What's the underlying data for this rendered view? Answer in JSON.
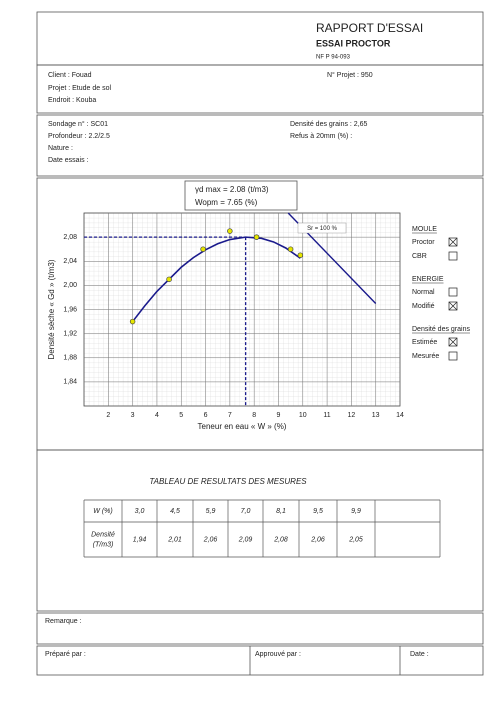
{
  "header": {
    "title": "RAPPORT D'ESSAI",
    "subtitle": "ESSAI PROCTOR",
    "norm": "NF P 94-093"
  },
  "client": {
    "client": "Client : Fouad",
    "projet_no": "N° Projet : 950",
    "projet": "Projet : Etude de sol",
    "endroit": "Endroit : Kouba"
  },
  "sondage": {
    "sondage": "Sondage n° : SC01",
    "profondeur": "Profondeur : 2.2/2.5",
    "nature": "Nature :",
    "date": "Date essais :",
    "densite": "Densité des grains : 2,65",
    "refus": "Refus à 20mm (%) :"
  },
  "chart_data": {
    "type": "scatter",
    "xlabel": "Teneur en eau « W » (%)",
    "ylabel": "Densité sèche « Gd » (t/m3)",
    "xlim": [
      1,
      14
    ],
    "ylim": [
      1.8,
      2.12
    ],
    "xticks": [
      2,
      3,
      4,
      5,
      6,
      7,
      8,
      9,
      10,
      11,
      12,
      13,
      14
    ],
    "yticks": [
      {
        "value": 1.84,
        "label": "1,84"
      },
      {
        "value": 1.88,
        "label": "1,88"
      },
      {
        "value": 1.92,
        "label": "1,92"
      },
      {
        "value": 1.96,
        "label": "1,96"
      },
      {
        "value": 2.0,
        "label": "2,00"
      },
      {
        "value": 2.04,
        "label": "2,04"
      },
      {
        "value": 2.08,
        "label": "2,08"
      }
    ],
    "grid": true,
    "points": {
      "x": [
        3.0,
        4.5,
        5.9,
        7.0,
        8.1,
        9.5,
        9.9
      ],
      "y": [
        1.94,
        2.01,
        2.06,
        2.09,
        2.08,
        2.06,
        2.05
      ],
      "color": "#e6e600"
    },
    "curve": {
      "x": [
        3,
        3.5,
        4,
        4.5,
        5,
        5.5,
        6,
        6.5,
        7,
        7.65,
        8.3,
        8.8,
        9.3,
        9.9
      ],
      "y": [
        1.94,
        1.966,
        1.99,
        2.01,
        2.03,
        2.046,
        2.059,
        2.069,
        2.076,
        2.08,
        2.078,
        2.072,
        2.062,
        2.045
      ],
      "color": "#1a1a8c"
    },
    "saturation": {
      "label": "Sr = 100 %",
      "x": [
        9.4,
        13
      ],
      "y": [
        2.12,
        1.97
      ],
      "color": "#1a1a8c"
    },
    "optimum": {
      "x": 7.65,
      "y": 2.08,
      "labels": [
        "γd max = 2.08 (t/m3)",
        "Wopm = 7.65 (%)"
      ],
      "color": "#1a1a8c"
    }
  },
  "options": [
    {
      "title": "MOULE",
      "items": [
        {
          "label": "Proctor",
          "checked": true
        },
        {
          "label": "CBR",
          "checked": false
        }
      ]
    },
    {
      "title": "ENERGIE",
      "items": [
        {
          "label": "Normal",
          "checked": false
        },
        {
          "label": "Modifié",
          "checked": true
        }
      ]
    },
    {
      "title": "Densité des grains",
      "items": [
        {
          "label": "Estimée",
          "checked": true
        },
        {
          "label": "Mesurée",
          "checked": false
        }
      ]
    }
  ],
  "table": {
    "title": "TABLEAU DE RESULTATS DES MESURES",
    "rows": [
      {
        "label": [
          "W (%)"
        ],
        "cells": [
          "3,0",
          "4,5",
          "5,9",
          "7,0",
          "8,1",
          "9,5",
          "9,9"
        ]
      },
      {
        "label": [
          "Densité",
          "(T/m3)"
        ],
        "cells": [
          "1,94",
          "2,01",
          "2,06",
          "2,09",
          "2,08",
          "2,06",
          "2,05"
        ]
      }
    ]
  },
  "footer": {
    "remarque": "Remarque :",
    "prepare": "Préparé par :",
    "approuve": "Approuvé par :",
    "date": "Date :"
  }
}
